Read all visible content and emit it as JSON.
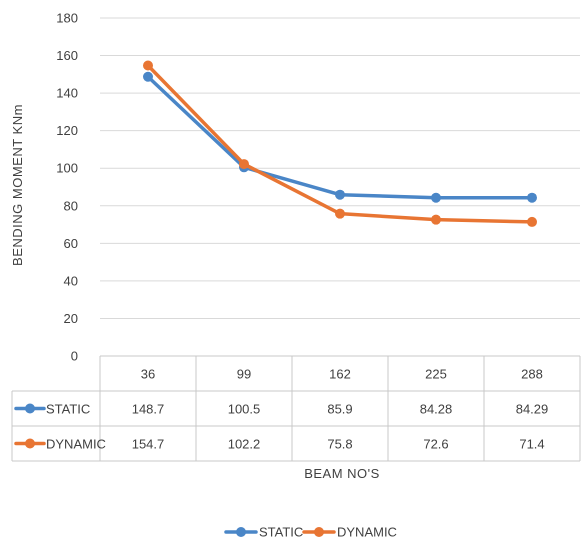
{
  "chart_data": {
    "type": "line",
    "title": "",
    "xlabel": "BEAM NO'S",
    "ylabel": "BENDING MOMENT KNm",
    "ylim": [
      0,
      180
    ],
    "ytick_step": 20,
    "yticks": [
      "0",
      "20",
      "40",
      "60",
      "80",
      "100",
      "120",
      "140",
      "160",
      "180"
    ],
    "categories": [
      "36",
      "99",
      "162",
      "225",
      "288"
    ],
    "grid": "horizontal",
    "legend_position": "bottom",
    "data_table": true,
    "series": [
      {
        "name": "STATIC",
        "color": "#4a86c7",
        "values": [
          148.7,
          100.5,
          85.9,
          84.28,
          84.29
        ],
        "labels": [
          "148.7",
          "100.5",
          "85.9",
          "84.28",
          "84.29"
        ]
      },
      {
        "name": "DYNAMIC",
        "color": "#e87533",
        "values": [
          154.7,
          102.2,
          75.8,
          72.6,
          71.4
        ],
        "labels": [
          "154.7",
          "102.2",
          "75.8",
          "72.6",
          "71.4"
        ]
      }
    ]
  }
}
